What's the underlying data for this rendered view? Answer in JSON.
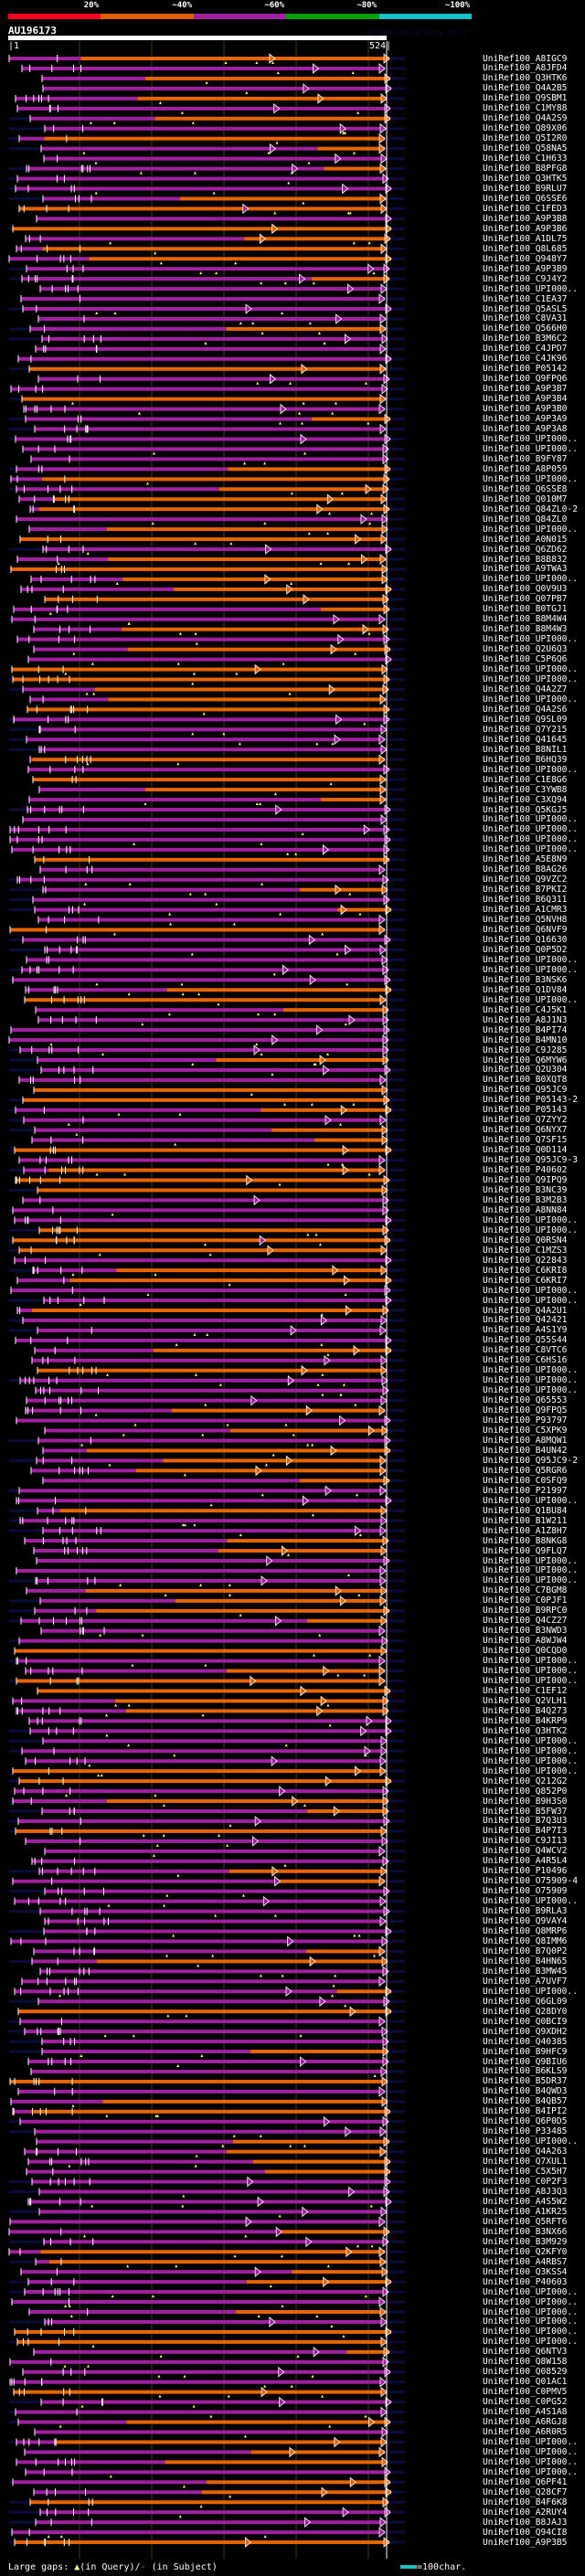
{
  "header": {
    "percent_labels": [
      "20%",
      "~40%",
      "~60%",
      "~80%",
      "~100%"
    ],
    "percent_colors": [
      "#ff0022",
      "#e06000",
      "#a020a0",
      "#00a000",
      "#19c0c8"
    ],
    "query_name": "AU196173",
    "version": "AlignView.pm Beta rel.7",
    "scale_start": "|1",
    "scale_end": "524|"
  },
  "colors": {
    "purple": "#a020a0",
    "orange": "#e86400",
    "lead": "#0b0b3a",
    "gap": "#ffff80",
    "grid": "#3a3a10"
  },
  "hits": [
    "UniRef100_A8IGC9",
    "UniRef100_A8JFD4",
    "UniRef100_Q3HTK6",
    "UniRef100_Q4A2B5",
    "UniRef100_Q9SBM1",
    "UniRef100_C1MY88",
    "UniRef100_Q4A2S9",
    "UniRef100_Q89X06",
    "UniRef100_Q5I2R0",
    "UniRef100_Q58NA5",
    "UniRef100_C1H633",
    "UniRef100_B8PFG8",
    "UniRef100_Q3HTK5",
    "UniRef100_B9RLU7",
    "UniRef100_Q6SSE6",
    "UniRef100_C1FED3",
    "UniRef100_A9P3B8",
    "UniRef100_A9P3B6",
    "UniRef100_A1DL75",
    "UniRef100_Q8L685",
    "UniRef100_Q948Y7",
    "UniRef100_A9P3B9",
    "UniRef100_C9J4Y2",
    "UniRef100_UPI000..",
    "UniRef100_C1EA37",
    "UniRef100_Q5ASL5",
    "UniRef100_C8VA31",
    "UniRef100_Q566H0",
    "UniRef100_B3M6C2",
    "UniRef100_C4JPD7",
    "UniRef100_C4JK96",
    "UniRef100_P05142",
    "UniRef100_Q9FPQ6",
    "UniRef100_A9P3B7",
    "UniRef100_A9P3B4",
    "UniRef100_A9P3B0",
    "UniRef100_A9P3A9",
    "UniRef100_A9P3A8",
    "UniRef100_UPI000..",
    "UniRef100_UPI000..",
    "UniRef100_B9FY87",
    "UniRef100_A8P059",
    "UniRef100_UPI000..",
    "UniRef100_Q6SSE8",
    "UniRef100_Q010M7",
    "UniRef100_Q84ZL0-2",
    "UniRef100_Q84ZL0",
    "UniRef100_UPI000..",
    "UniRef100_A0N015",
    "UniRef100_Q6ZD62",
    "UniRef100_B8B832",
    "UniRef100_A9TWA3",
    "UniRef100_UPI000..",
    "UniRef100_Q0V9U3",
    "UniRef100_Q07PB7",
    "UniRef100_B0TGJ1",
    "UniRef100_B8M4W4",
    "UniRef100_B8M4W3",
    "UniRef100_UPI000..",
    "UniRef100_Q2U6Q3",
    "UniRef100_C5P6Q6",
    "UniRef100_UPI000..",
    "UniRef100_UPI000..",
    "UniRef100_Q4A2Z7",
    "UniRef100_UPI000..",
    "UniRef100_Q4A2S6",
    "UniRef100_Q9SL09",
    "UniRef100_Q7Y215",
    "UniRef100_Q41645",
    "UniRef100_B8NIL1",
    "UniRef100_B6HQ39",
    "UniRef100_UPI000..",
    "UniRef100_C1E8G6",
    "UniRef100_C3YWB8",
    "UniRef100_C3XQ94",
    "UniRef100_Q5KGJ5",
    "UniRef100_UPI000..",
    "UniRef100_UPI000..",
    "UniRef100_UPI000..",
    "UniRef100_UPI000..",
    "UniRef100_A5E8N9",
    "UniRef100_B8AG26",
    "UniRef100_Q9VZC2",
    "UniRef100_B7PKI2",
    "UniRef100_B6Q311",
    "UniRef100_A1CMR3",
    "UniRef100_Q5NVH8",
    "UniRef100_Q6NVF9",
    "UniRef100_Q16630",
    "UniRef100_Q0P5D2",
    "UniRef100_UPI000..",
    "UniRef100_UPI000..",
    "UniRef100_B3NSK6",
    "UniRef100_Q1DV84",
    "UniRef100_UPI000..",
    "UniRef100_C4J5K1",
    "UniRef100_A8J1N3",
    "UniRef100_B4PI74",
    "UniRef100_B4MN10",
    "UniRef100_C9J285",
    "UniRef100_Q6MYW6",
    "UniRef100_Q2U304",
    "UniRef100_B0XQT8",
    "UniRef100_Q95JC9",
    "UniRef100_P05143-2",
    "UniRef100_P05143",
    "UniRef100_Q7ZYY2",
    "UniRef100_Q6NYX7",
    "UniRef100_Q7SF15",
    "UniRef100_Q0D114",
    "UniRef100_Q95JC9-3",
    "UniRef100_P40602",
    "UniRef100_Q9IPQ9",
    "UniRef100_B3NC39",
    "UniRef100_B3M2B3",
    "UniRef100_A8NN84",
    "UniRef100_UPI000..",
    "UniRef100_UPI000..",
    "UniRef100_Q0RSN4",
    "UniRef100_C1MZS3",
    "UniRef100_Q22843",
    "UniRef100_C6KRI8",
    "UniRef100_C6KRI7",
    "UniRef100_UPI000..",
    "UniRef100_UPI000..",
    "UniRef100_Q4A2U1",
    "UniRef100_Q42421",
    "UniRef100_A4S1Y9",
    "UniRef100_Q55S44",
    "UniRef100_C8VTC6",
    "UniRef100_C6HS16",
    "UniRef100_UPI000..",
    "UniRef100_UPI000..",
    "UniRef100_UPI000..",
    "UniRef100_Q65553",
    "UniRef100_Q9FPQ5",
    "UniRef100_P93797",
    "UniRef100_C5XPK9",
    "UniRef100_A8MQW1",
    "UniRef100_B4UN42",
    "UniRef100_Q95JC9-2",
    "UniRef100_Q5RGR6",
    "UniRef100_C0SFQ9",
    "UniRef100_P21997",
    "UniRef100_UPI000..",
    "UniRef100_Q1BU84",
    "UniRef100_B1W211",
    "UniRef100_A1Z8H7",
    "UniRef100_B8NKG8",
    "UniRef100_Q9FLQ7",
    "UniRef100_UPI000..",
    "UniRef100_UPI000..",
    "UniRef100_UPI000..",
    "UniRef100_C7BGM8",
    "UniRef100_C0PJF1",
    "UniRef100_B9RPC0",
    "UniRef100_Q4CZ27",
    "UniRef100_B3NWD3",
    "UniRef100_A8WJW4",
    "UniRef100_Q0CQD0",
    "UniRef100_UPI000..",
    "UniRef100_UPI000..",
    "UniRef100_UPI000..",
    "UniRef100_C1EF12",
    "UniRef100_Q2VLH1",
    "UniRef100_B4Q273",
    "UniRef100_B4KRP9",
    "UniRef100_Q3HTK2",
    "UniRef100_UPI000..",
    "UniRef100_UPI000..",
    "UniRef100_UPI000..",
    "UniRef100_UPI000..",
    "UniRef100_Q212G2",
    "UniRef100_Q852P0",
    "UniRef100_B9H3S0",
    "UniRef100_B5FW37",
    "UniRef100_B7Q3U3",
    "UniRef100_B4P7I3",
    "UniRef100_C9JI13",
    "UniRef100_Q4WCV2",
    "UniRef100_A4R5L4",
    "UniRef100_P10496",
    "UniRef100_O75909-4",
    "UniRef100_O75909",
    "UniRef100_UPI000..",
    "UniRef100_B9RLA3",
    "UniRef100_Q9VAY4",
    "UniRef100_Q8MRP6",
    "UniRef100_Q8IMM6",
    "UniRef100_B7Q0P2",
    "UniRef100_B4HN65",
    "UniRef100_B3MW45",
    "UniRef100_A7UVF7",
    "UniRef100_UPI000..",
    "UniRef100_Q6GL09",
    "UniRef100_Q28DY0",
    "UniRef100_Q0BCI9",
    "UniRef100_Q9XDH2",
    "UniRef100_Q40385",
    "UniRef100_B9HFC9",
    "UniRef100_Q9BIU6",
    "UniRef100_B6KLS9",
    "UniRef100_B5DR37",
    "UniRef100_B4QWD3",
    "UniRef100_B4QB57",
    "UniRef100_B4IPI2",
    "UniRef100_Q6P0D5",
    "UniRef100_P33485",
    "UniRef100_UPI000..",
    "UniRef100_Q4A263",
    "UniRef100_Q7XUL1",
    "UniRef100_C5X5H7",
    "UniRef100_C0P2F3",
    "UniRef100_A8J3Q3",
    "UniRef100_A4S5W2",
    "UniRef100_A1KR25",
    "UniRef100_Q5RFT6",
    "UniRef100_B3NX66",
    "UniRef100_B3M929",
    "UniRef100_Q2KFY0",
    "UniRef100_A4RBS7",
    "UniRef100_Q3KSS4",
    "UniRef100_P40603",
    "UniRef100_UPI000..",
    "UniRef100_UPI000..",
    "UniRef100_UPI000..",
    "UniRef100_UPI000..",
    "UniRef100_UPI000..",
    "UniRef100_UPI000..",
    "UniRef100_Q6NTV3",
    "UniRef100_Q8W158",
    "UniRef100_Q08529",
    "UniRef100_Q01AC1",
    "UniRef100_C0PMV5",
    "UniRef100_C0PG52",
    "UniRef100_A4S1A8",
    "UniRef100_A6RGJ8",
    "UniRef100_A6R0R5",
    "UniRef100_UPI000..",
    "UniRef100_UPI000..",
    "UniRef100_UPI000..",
    "UniRef100_UPI000..",
    "UniRef100_Q6PF41",
    "UniRef100_Q28CF7",
    "UniRef100_B4F6K8",
    "UniRef100_A2RUY4",
    "UniRef100_B8JAJ3",
    "UniRef100_Q94CI8",
    "UniRef100_A9P3B5"
  ],
  "footer": {
    "gaps_label": "Large gaps: ",
    "query_gap_marker": "▲",
    "query_gap_text": "(in Query)/",
    "subject_gap_marker": "-",
    "subject_gap_text": " (in Subject)",
    "scale_legend": "=100char."
  }
}
